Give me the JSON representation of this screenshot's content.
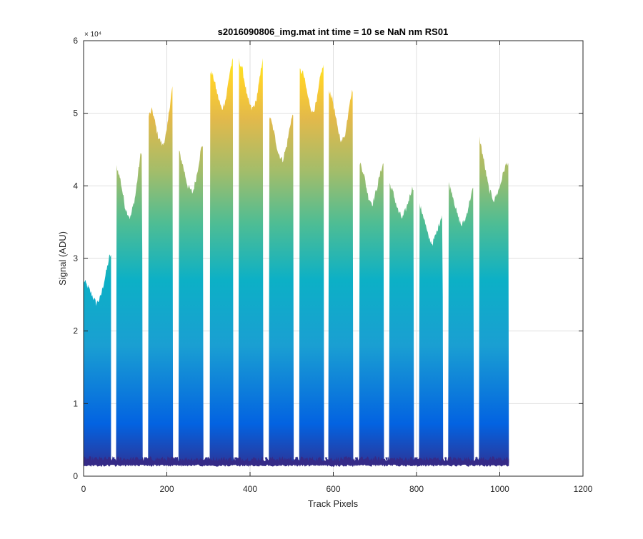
{
  "chart_data": {
    "type": "area",
    "title": "s2016090806_img.mat int time = 10 se  NaN nm RS01",
    "xlabel": "Track Pixels",
    "ylabel": "Signal (ADU)",
    "xlim": [
      0,
      1200
    ],
    "ylim": [
      0,
      60000
    ],
    "xticks": [
      0,
      200,
      400,
      600,
      800,
      1000,
      1200
    ],
    "yticks": [
      0,
      10000,
      20000,
      30000,
      40000,
      50000,
      60000
    ],
    "ytick_labels": [
      "0",
      "1",
      "2",
      "3",
      "4",
      "5",
      "6"
    ],
    "y_exponent_label": "× 10⁴",
    "grid": true,
    "legend": "none",
    "colormap": [
      "#352a87",
      "#0363e1",
      "#1a9fd2",
      "#0cb0c6",
      "#4ebd94",
      "#a3bd6a",
      "#e2b94b",
      "#fcce2e",
      "#f9fb0e"
    ],
    "baseline": 1800,
    "tracks": [
      {
        "start": 0,
        "end": 66,
        "profile": [
          [
            0,
            27000
          ],
          [
            8,
            26300
          ],
          [
            20,
            25000
          ],
          [
            30,
            23800
          ],
          [
            40,
            24500
          ],
          [
            52,
            27500
          ],
          [
            62,
            30200
          ],
          [
            66,
            30500
          ]
        ]
      },
      {
        "start": 78,
        "end": 142,
        "profile": [
          [
            78,
            43000
          ],
          [
            88,
            41000
          ],
          [
            100,
            37000
          ],
          [
            112,
            35500
          ],
          [
            124,
            38500
          ],
          [
            136,
            44000
          ],
          [
            142,
            45200
          ]
        ]
      },
      {
        "start": 155,
        "end": 215,
        "profile": [
          [
            155,
            49500
          ],
          [
            165,
            50500
          ],
          [
            178,
            47000
          ],
          [
            190,
            45500
          ],
          [
            200,
            47500
          ],
          [
            210,
            52500
          ],
          [
            215,
            54000
          ]
        ]
      },
      {
        "start": 228,
        "end": 288,
        "profile": [
          [
            228,
            45000
          ],
          [
            238,
            43000
          ],
          [
            250,
            40000
          ],
          [
            262,
            39000
          ],
          [
            272,
            41500
          ],
          [
            282,
            45000
          ],
          [
            288,
            46000
          ]
        ]
      },
      {
        "start": 303,
        "end": 360,
        "profile": [
          [
            303,
            56000
          ],
          [
            312,
            55000
          ],
          [
            322,
            52500
          ],
          [
            332,
            50500
          ],
          [
            342,
            52000
          ],
          [
            352,
            56000
          ],
          [
            360,
            57500
          ]
        ]
      },
      {
        "start": 372,
        "end": 432,
        "profile": [
          [
            372,
            57500
          ],
          [
            382,
            56000
          ],
          [
            394,
            52000
          ],
          [
            404,
            50500
          ],
          [
            414,
            51500
          ],
          [
            424,
            55000
          ],
          [
            432,
            58500
          ]
        ]
      },
      {
        "start": 445,
        "end": 505,
        "profile": [
          [
            445,
            50000
          ],
          [
            455,
            48000
          ],
          [
            468,
            44500
          ],
          [
            478,
            43500
          ],
          [
            488,
            45500
          ],
          [
            498,
            49000
          ],
          [
            505,
            50000
          ]
        ]
      },
      {
        "start": 518,
        "end": 578,
        "profile": [
          [
            518,
            56000
          ],
          [
            528,
            55500
          ],
          [
            540,
            52000
          ],
          [
            550,
            50000
          ],
          [
            560,
            51500
          ],
          [
            570,
            55500
          ],
          [
            578,
            56800
          ]
        ]
      },
      {
        "start": 588,
        "end": 648,
        "profile": [
          [
            588,
            53500
          ],
          [
            598,
            52000
          ],
          [
            610,
            48000
          ],
          [
            620,
            46000
          ],
          [
            630,
            47500
          ],
          [
            640,
            52000
          ],
          [
            648,
            53500
          ]
        ]
      },
      {
        "start": 662,
        "end": 722,
        "profile": [
          [
            662,
            43500
          ],
          [
            672,
            42000
          ],
          [
            684,
            38500
          ],
          [
            694,
            37500
          ],
          [
            704,
            39500
          ],
          [
            716,
            42500
          ],
          [
            722,
            43300
          ]
        ]
      },
      {
        "start": 734,
        "end": 794,
        "profile": [
          [
            734,
            40500
          ],
          [
            744,
            39000
          ],
          [
            756,
            36500
          ],
          [
            766,
            35500
          ],
          [
            776,
            37000
          ],
          [
            788,
            39500
          ],
          [
            794,
            40000
          ]
        ]
      },
      {
        "start": 806,
        "end": 864,
        "profile": [
          [
            806,
            37500
          ],
          [
            816,
            36000
          ],
          [
            828,
            33000
          ],
          [
            838,
            32000
          ],
          [
            848,
            33500
          ],
          [
            858,
            35500
          ],
          [
            864,
            36500
          ]
        ]
      },
      {
        "start": 876,
        "end": 938,
        "profile": [
          [
            876,
            40500
          ],
          [
            886,
            39000
          ],
          [
            898,
            36000
          ],
          [
            908,
            34500
          ],
          [
            918,
            35500
          ],
          [
            930,
            38500
          ],
          [
            938,
            40000
          ]
        ]
      },
      {
        "start": 950,
        "end": 1022,
        "profile": [
          [
            950,
            47000
          ],
          [
            960,
            44000
          ],
          [
            974,
            39500
          ],
          [
            986,
            38000
          ],
          [
            998,
            39500
          ],
          [
            1012,
            42500
          ],
          [
            1022,
            43500
          ]
        ]
      }
    ]
  }
}
